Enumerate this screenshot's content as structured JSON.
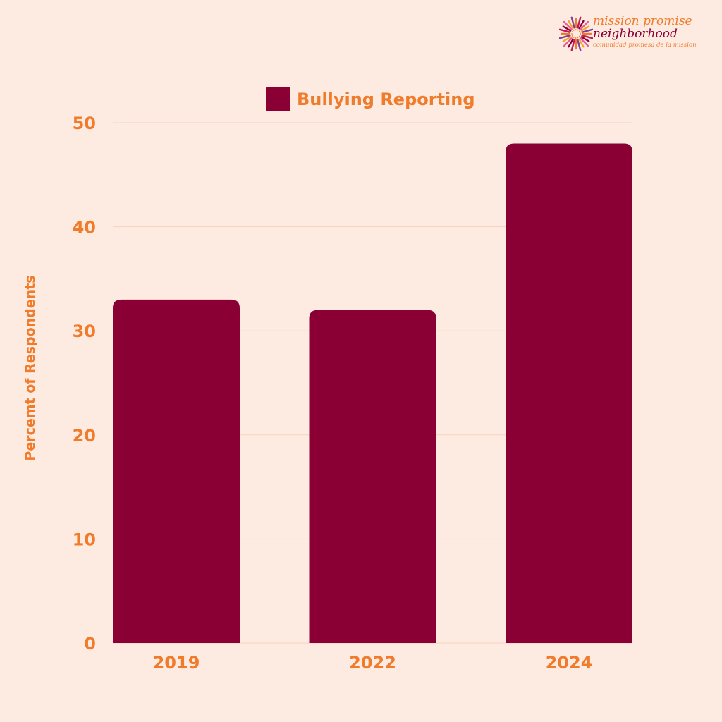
{
  "brand": {
    "line1": "mission promise",
    "line2": "neighborhood",
    "line3": "comunidad promesa de la mission"
  },
  "colors": {
    "background": "#fdebe1",
    "bar": "#8b0034",
    "text_accent": "#f07b2b",
    "grid": "#f6d2bf"
  },
  "chart_data": {
    "type": "bar",
    "categories": [
      "2019",
      "2022",
      "2024"
    ],
    "series": [
      {
        "name": "Bullying Reporting",
        "values": [
          33,
          32,
          48
        ]
      }
    ],
    "ylabel": "Percemt of Respondents",
    "xlabel": "",
    "ylim": [
      0,
      50
    ],
    "yticks": [
      0,
      10,
      20,
      30,
      40,
      50
    ],
    "grid": true,
    "legend": "top-center"
  }
}
